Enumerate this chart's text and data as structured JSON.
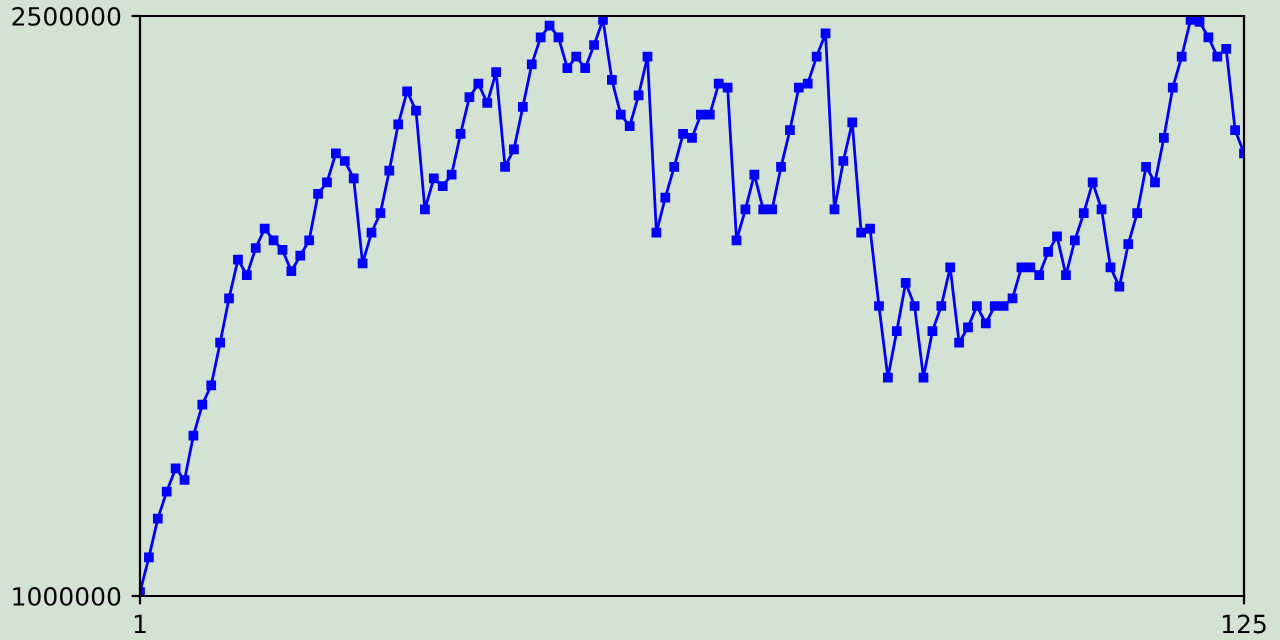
{
  "chart_data": {
    "type": "line",
    "x": [
      1,
      2,
      3,
      4,
      5,
      6,
      7,
      8,
      9,
      10,
      11,
      12,
      13,
      14,
      15,
      16,
      17,
      18,
      19,
      20,
      21,
      22,
      23,
      24,
      25,
      26,
      27,
      28,
      29,
      30,
      31,
      32,
      33,
      34,
      35,
      36,
      37,
      38,
      39,
      40,
      41,
      42,
      43,
      44,
      45,
      46,
      47,
      48,
      49,
      50,
      51,
      52,
      53,
      54,
      55,
      56,
      57,
      58,
      59,
      60,
      61,
      62,
      63,
      64,
      65,
      66,
      67,
      68,
      69,
      70,
      71,
      72,
      73,
      74,
      75,
      76,
      77,
      78,
      79,
      80,
      81,
      82,
      83,
      84,
      85,
      86,
      87,
      88,
      89,
      90,
      91,
      92,
      93,
      94,
      95,
      96,
      97,
      98,
      99,
      100,
      101,
      102,
      103,
      104,
      105,
      106,
      107,
      108,
      109,
      110,
      111,
      112,
      113,
      114,
      115,
      116,
      117,
      118,
      119,
      120,
      121,
      122,
      123,
      124,
      125
    ],
    "series": [
      {
        "color": "#0000ff",
        "values": [
          1010000,
          1100000,
          1200000,
          1270000,
          1330000,
          1300000,
          1415000,
          1495000,
          1545000,
          1655000,
          1770000,
          1870000,
          1830000,
          1900000,
          1950000,
          1920000,
          1895000,
          1840000,
          1880000,
          1920000,
          2040000,
          2070000,
          2145000,
          2125000,
          2080000,
          1860000,
          1940000,
          1990000,
          2100000,
          2220000,
          2305000,
          2255000,
          2000000,
          2080000,
          2060000,
          2090000,
          2195000,
          2290000,
          2325000,
          2275000,
          2355000,
          2110000,
          2155000,
          2265000,
          2375000,
          2445000,
          2475000,
          2445000,
          2365000,
          2395000,
          2365000,
          2425000,
          2490000,
          2335000,
          2245000,
          2215000,
          2295000,
          2395000,
          1940000,
          2030000,
          2110000,
          2195000,
          2185000,
          2245000,
          2245000,
          2325000,
          2315000,
          1920000,
          2000000,
          2090000,
          2000000,
          2000000,
          2110000,
          2205000,
          2315000,
          2325000,
          2395000,
          2455000,
          2000000,
          2125000,
          2225000,
          1940000,
          1950000,
          1750000,
          1565000,
          1685000,
          1810000,
          1750000,
          1565000,
          1685000,
          1750000,
          1850000,
          1655000,
          1695000,
          1750000,
          1705000,
          1750000,
          1750000,
          1770000,
          1850000,
          1850000,
          1830000,
          1890000,
          1930000,
          1830000,
          1920000,
          1990000,
          2070000,
          2000000,
          1850000,
          1800000,
          1910000,
          1990000,
          2110000,
          2070000,
          2185000,
          2315000,
          2395000,
          2490000,
          2485000,
          2445000,
          2395000,
          2415000,
          2205000,
          2145000
        ]
      }
    ],
    "xlim": [
      1,
      125
    ],
    "xticks": [
      1,
      125
    ],
    "ylim": [
      1000000,
      2500000
    ],
    "yticks": [
      1000000,
      2500000
    ],
    "marker": "square",
    "line_style": "solid",
    "grid": false,
    "legend": false
  }
}
